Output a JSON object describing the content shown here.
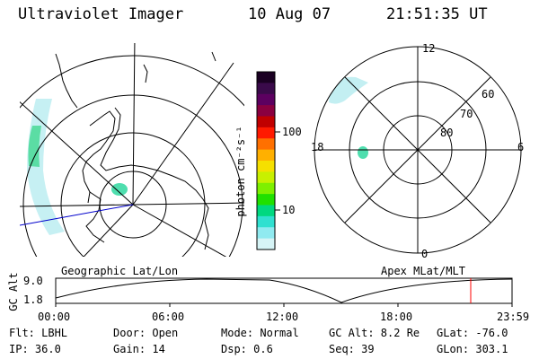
{
  "header": {
    "instrument": "Ultraviolet Imager",
    "date": "10 Aug 07",
    "time": "21:51:35 UT"
  },
  "geo_panel": {
    "label": "Geographic Lat/Lon"
  },
  "apex_panel": {
    "label": "Apex  MLat/MLT",
    "mlt_labels": {
      "top": "12",
      "left": "18",
      "right": "6",
      "bottom": "0"
    },
    "lat_labels": [
      "60",
      "70",
      "80"
    ]
  },
  "colorbar": {
    "unit": "photon cm⁻²s⁻¹",
    "ticks": [
      "100",
      "10"
    ],
    "colors": [
      "#1a0022",
      "#3a0a4a",
      "#5c0060",
      "#8a0040",
      "#c00000",
      "#ff1a00",
      "#ff7000",
      "#ffb000",
      "#f5e000",
      "#c8f000",
      "#7ef000",
      "#20e000",
      "#00d880",
      "#30e0d0",
      "#90eaf0",
      "#d6f4f6"
    ]
  },
  "altitude_plot": {
    "ylabel": "GC Alt",
    "yticks": [
      "9.0",
      "1.8"
    ],
    "xticks": [
      "00:00",
      "06:00",
      "12:00",
      "18:00",
      "23:59"
    ],
    "marker_color": "#ff0000"
  },
  "info": {
    "filter": "Flt: LBHL",
    "ip": "IP: 36.0",
    "door": "Door: Open",
    "gain": "Gain: 14",
    "mode": "Mode: Normal",
    "dsp": "Dsp:     0.6",
    "gcalt": "GC Alt: 8.2 Re",
    "seq": "Seq: 39",
    "glat": "GLat: -76.0",
    "glon": "GLon: 303.1"
  }
}
